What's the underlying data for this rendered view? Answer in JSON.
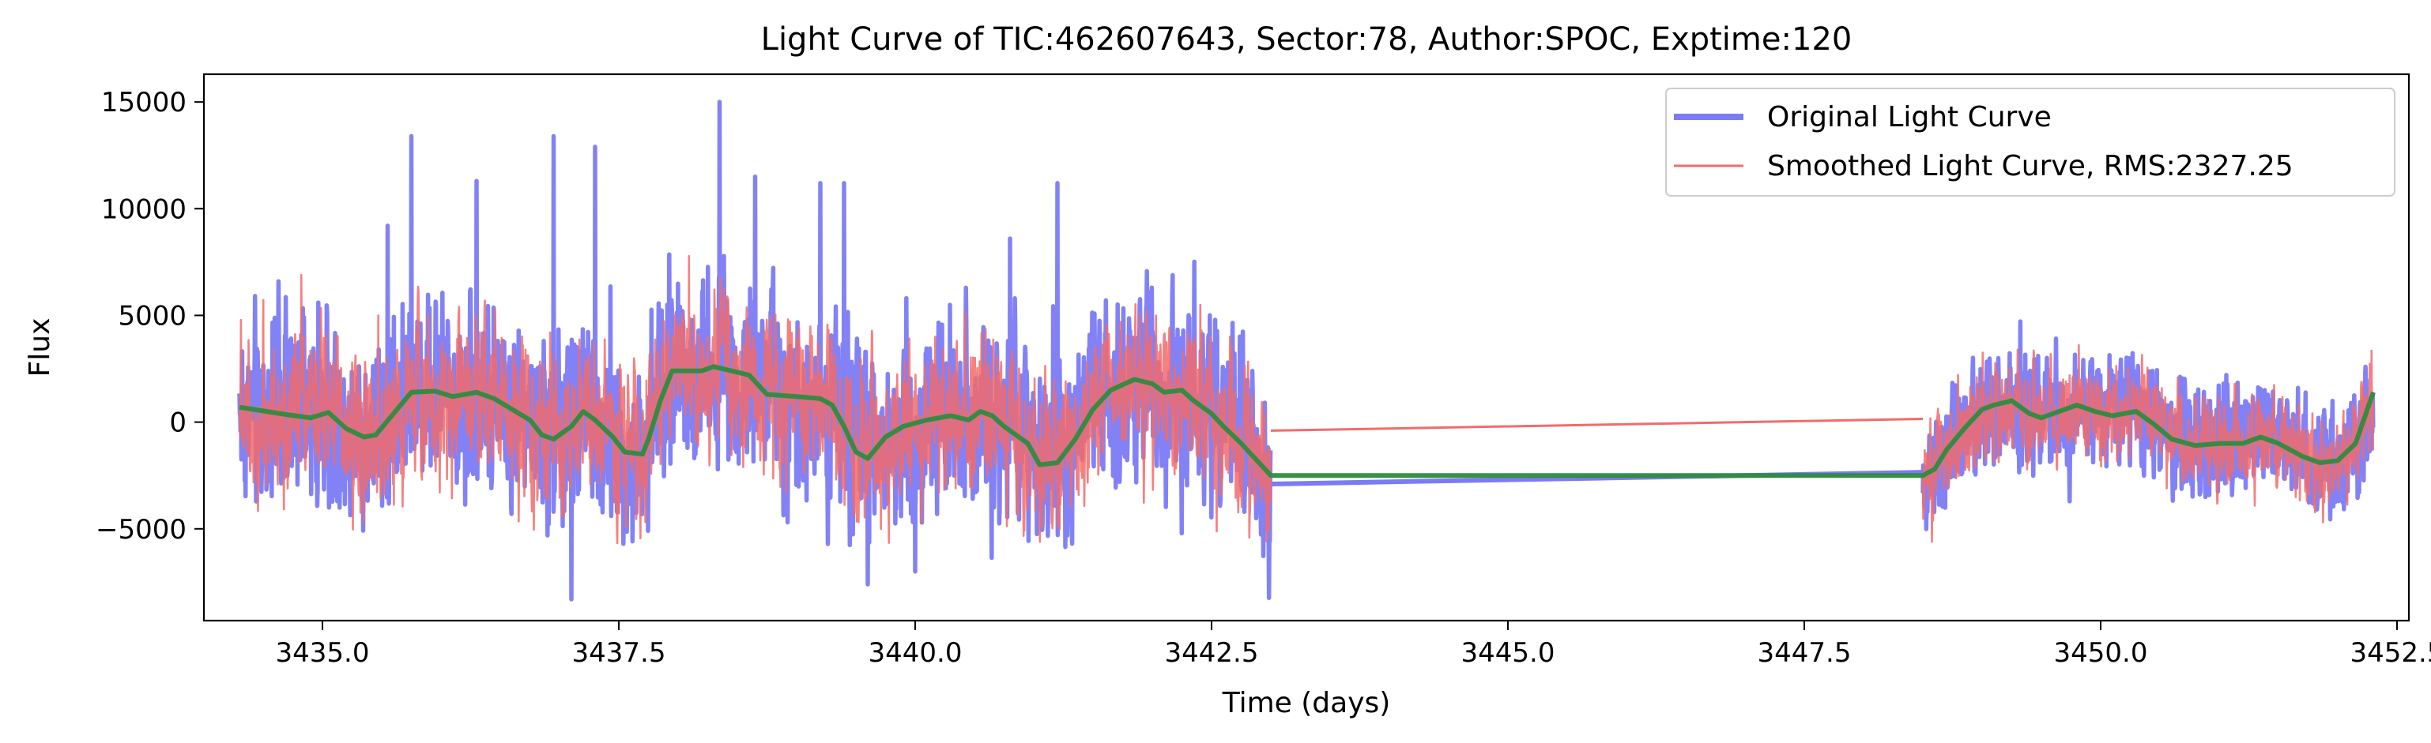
{
  "chart_data": {
    "type": "line",
    "title": "Light Curve of TIC:462607643, Sector:78, Author:SPOC, Exptime:120",
    "xlabel": "Time (days)",
    "ylabel": "Flux",
    "xlim": [
      3434.0,
      3452.6
    ],
    "ylim": [
      -9300,
      16300
    ],
    "xticks": [
      3435.0,
      3437.5,
      3440.0,
      3442.5,
      3445.0,
      3447.5,
      3450.0,
      3452.5
    ],
    "xtick_labels": [
      "3435.0",
      "3437.5",
      "3440.0",
      "3442.5",
      "3445.0",
      "3447.5",
      "3450.0",
      "3452.5"
    ],
    "yticks": [
      -5000,
      0,
      5000,
      10000,
      15000
    ],
    "ytick_labels": [
      "−5000",
      "0",
      "5000",
      "10000",
      "15000"
    ],
    "grid": false,
    "legend_position": "upper right",
    "segments": [
      {
        "start": 3434.3,
        "end": 3443.0
      },
      {
        "start": 3448.5,
        "end": 3452.3
      }
    ],
    "series": [
      {
        "name": "Original Light Curve",
        "color": "#7b7bf5",
        "role": "flux",
        "amplitude": 3600,
        "spikes": [
          [
            3435.55,
            9200
          ],
          [
            3435.75,
            13400
          ],
          [
            3436.3,
            11300
          ],
          [
            3436.95,
            13400
          ],
          [
            3437.3,
            12900
          ],
          [
            3438.35,
            15000
          ],
          [
            3438.65,
            11500
          ],
          [
            3439.2,
            11200
          ],
          [
            3439.4,
            11200
          ],
          [
            3440.8,
            8600
          ],
          [
            3441.2,
            11200
          ]
        ],
        "dips": [
          [
            3437.1,
            -8300
          ],
          [
            3439.6,
            -7600
          ],
          [
            3440.0,
            -7000
          ]
        ],
        "gap_line": [
          [
            3443.0,
            -2900
          ],
          [
            3448.5,
            -2350
          ]
        ]
      },
      {
        "name": "Smoothed Light Curve, RMS:2327.25",
        "color": "#f26b6b",
        "role": "flux",
        "amplitude": 3000,
        "gap_line": [
          [
            3443.0,
            -400
          ],
          [
            3448.5,
            150
          ]
        ]
      },
      {
        "color": "#2e8b3e",
        "role": "trend",
        "points": [
          [
            3434.3,
            700
          ],
          [
            3434.7,
            350
          ],
          [
            3434.9,
            200
          ],
          [
            3435.05,
            450
          ],
          [
            3435.2,
            -300
          ],
          [
            3435.35,
            -700
          ],
          [
            3435.45,
            -600
          ],
          [
            3435.6,
            400
          ],
          [
            3435.75,
            1400
          ],
          [
            3435.95,
            1450
          ],
          [
            3436.1,
            1200
          ],
          [
            3436.3,
            1400
          ],
          [
            3436.45,
            1100
          ],
          [
            3436.6,
            600
          ],
          [
            3436.75,
            100
          ],
          [
            3436.85,
            -600
          ],
          [
            3436.95,
            -800
          ],
          [
            3437.1,
            -200
          ],
          [
            3437.2,
            500
          ],
          [
            3437.3,
            100
          ],
          [
            3437.45,
            -700
          ],
          [
            3437.55,
            -1400
          ],
          [
            3437.7,
            -1500
          ],
          [
            3437.75,
            -800
          ],
          [
            3437.85,
            1000
          ],
          [
            3437.95,
            2400
          ],
          [
            3438.2,
            2400
          ],
          [
            3438.3,
            2600
          ],
          [
            3438.45,
            2400
          ],
          [
            3438.6,
            2200
          ],
          [
            3438.75,
            1300
          ],
          [
            3439.0,
            1200
          ],
          [
            3439.2,
            1100
          ],
          [
            3439.3,
            800
          ],
          [
            3439.4,
            -200
          ],
          [
            3439.5,
            -1400
          ],
          [
            3439.6,
            -1700
          ],
          [
            3439.75,
            -700
          ],
          [
            3439.9,
            -200
          ],
          [
            3440.1,
            100
          ],
          [
            3440.3,
            300
          ],
          [
            3440.45,
            100
          ],
          [
            3440.55,
            500
          ],
          [
            3440.65,
            300
          ],
          [
            3440.75,
            -200
          ],
          [
            3440.85,
            -600
          ],
          [
            3440.95,
            -1000
          ],
          [
            3441.05,
            -2000
          ],
          [
            3441.2,
            -1900
          ],
          [
            3441.35,
            -800
          ],
          [
            3441.5,
            600
          ],
          [
            3441.65,
            1500
          ],
          [
            3441.85,
            2000
          ],
          [
            3442.0,
            1800
          ],
          [
            3442.1,
            1400
          ],
          [
            3442.25,
            1500
          ],
          [
            3442.35,
            1000
          ],
          [
            3442.5,
            400
          ],
          [
            3442.6,
            -200
          ],
          [
            3442.75,
            -1000
          ],
          [
            3442.85,
            -1600
          ],
          [
            3443.0,
            -2500
          ],
          [
            3448.5,
            -2500
          ],
          [
            3448.6,
            -2200
          ],
          [
            3448.7,
            -1300
          ],
          [
            3448.85,
            -300
          ],
          [
            3449.0,
            600
          ],
          [
            3449.1,
            800
          ],
          [
            3449.25,
            1000
          ],
          [
            3449.4,
            400
          ],
          [
            3449.5,
            200
          ],
          [
            3449.65,
            500
          ],
          [
            3449.8,
            800
          ],
          [
            3449.95,
            500
          ],
          [
            3450.1,
            300
          ],
          [
            3450.3,
            500
          ],
          [
            3450.45,
            -100
          ],
          [
            3450.6,
            -800
          ],
          [
            3450.8,
            -1100
          ],
          [
            3451.0,
            -1000
          ],
          [
            3451.2,
            -1000
          ],
          [
            3451.35,
            -700
          ],
          [
            3451.5,
            -1000
          ],
          [
            3451.7,
            -1600
          ],
          [
            3451.85,
            -1900
          ],
          [
            3452.0,
            -1800
          ],
          [
            3452.15,
            -1000
          ],
          [
            3452.3,
            1400
          ]
        ]
      }
    ],
    "legend": [
      {
        "label": "Original Light Curve",
        "color": "#7b7bf5",
        "width": 8
      },
      {
        "label": "Smoothed Light Curve, RMS:2327.25",
        "color": "#f26b6b",
        "width": 3
      }
    ]
  }
}
